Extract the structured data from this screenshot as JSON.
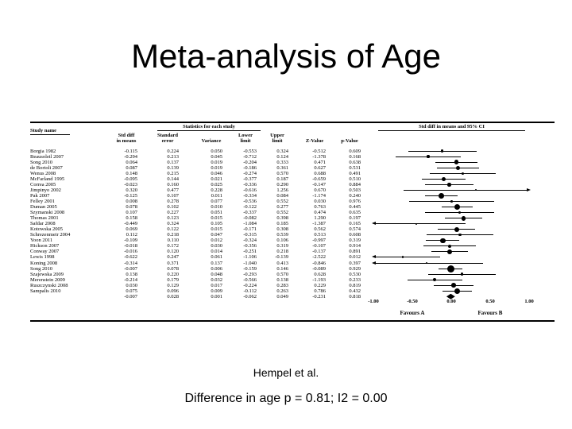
{
  "slide": {
    "title": "Meta-analysis of Age",
    "caption_authors": "Hempel et al.",
    "caption_stats": "Difference in age p = 0.81; I2 = 0.00"
  },
  "colors": {
    "text": "#000000",
    "background": "#ffffff",
    "marker": "#000000"
  },
  "chart_data": {
    "type": "forest",
    "table_headers": {
      "study": "Study name",
      "stats_group": "Statistics for each study",
      "plot": "Std diff in means and 95% CI",
      "cols": [
        {
          "l1": "Std diff",
          "l2": "in means"
        },
        {
          "l1": "Standard",
          "l2": "error"
        },
        {
          "l1": "",
          "l2": "Variance"
        },
        {
          "l1": "Lower",
          "l2": "limit"
        },
        {
          "l1": "Upper",
          "l2": "limit"
        },
        {
          "l1": "",
          "l2": "Z-Value"
        },
        {
          "l1": "",
          "l2": "p-Value"
        }
      ]
    },
    "axis": {
      "xlim": [
        -1,
        1
      ],
      "ticks": [
        -1.0,
        -0.5,
        0.0,
        0.5,
        1.0
      ],
      "tick_labels": [
        "-1.00",
        "-0.50",
        "0.00",
        "0.50",
        "1.00"
      ],
      "favours_left": "Favours A",
      "favours_right": "Favours B"
    },
    "studies": [
      {
        "name": "Borgia 1982",
        "std_diff": -0.115,
        "std_err": 0.224,
        "variance": 0.05,
        "lower": -0.553,
        "upper": 0.324,
        "z": -0.512,
        "p": 0.609
      },
      {
        "name": "Beausoleil 2007",
        "std_diff": -0.294,
        "std_err": 0.213,
        "variance": 0.045,
        "lower": -0.712,
        "upper": 0.124,
        "z": -1.378,
        "p": 0.168
      },
      {
        "name": "Song 2010",
        "std_diff": 0.064,
        "std_err": 0.137,
        "variance": 0.019,
        "lower": -0.204,
        "upper": 0.333,
        "z": 0.471,
        "p": 0.638
      },
      {
        "name": "de Bortoli 2007",
        "std_diff": 0.087,
        "std_err": 0.139,
        "variance": 0.019,
        "lower": -0.186,
        "upper": 0.361,
        "z": 0.627,
        "p": 0.531
      },
      {
        "name": "Wenus 2008",
        "std_diff": 0.148,
        "std_err": 0.215,
        "variance": 0.046,
        "lower": -0.274,
        "upper": 0.57,
        "z": 0.688,
        "p": 0.491
      },
      {
        "name": "McFarland 1995",
        "std_diff": -0.095,
        "std_err": 0.144,
        "variance": 0.021,
        "lower": -0.377,
        "upper": 0.187,
        "z": -0.659,
        "p": 0.51
      },
      {
        "name": "Correa 2005",
        "std_diff": -0.023,
        "std_err": 0.16,
        "variance": 0.025,
        "lower": -0.336,
        "upper": 0.29,
        "z": -0.147,
        "p": 0.884
      },
      {
        "name": "Jimpinyo 2002",
        "std_diff": 0.32,
        "std_err": 0.477,
        "variance": 0.228,
        "lower": -0.616,
        "upper": 1.256,
        "z": 0.67,
        "p": 0.503
      },
      {
        "name": "Pak 2007",
        "std_diff": -0.125,
        "std_err": 0.107,
        "variance": 0.011,
        "lower": -0.334,
        "upper": 0.084,
        "z": -1.174,
        "p": 0.24
      },
      {
        "name": "Felley 2001",
        "std_diff": 0.008,
        "std_err": 0.278,
        "variance": 0.077,
        "lower": -0.536,
        "upper": 0.552,
        "z": 0.03,
        "p": 0.976
      },
      {
        "name": "Duman 2005",
        "std_diff": 0.078,
        "std_err": 0.102,
        "variance": 0.01,
        "lower": -0.122,
        "upper": 0.277,
        "z": 0.763,
        "p": 0.445
      },
      {
        "name": "Szymanski 2008",
        "std_diff": 0.107,
        "std_err": 0.227,
        "variance": 0.051,
        "lower": -0.337,
        "upper": 0.552,
        "z": 0.474,
        "p": 0.635
      },
      {
        "name": "Thomas 2001",
        "std_diff": 0.158,
        "std_err": 0.123,
        "variance": 0.015,
        "lower": -0.082,
        "upper": 0.398,
        "z": 1.29,
        "p": 0.197
      },
      {
        "name": "Safdar 2008",
        "std_diff": -0.449,
        "std_err": 0.324,
        "variance": 0.105,
        "lower": -1.084,
        "upper": 0.185,
        "z": -1.387,
        "p": 0.165
      },
      {
        "name": "Kotowska 2005",
        "std_diff": 0.069,
        "std_err": 0.122,
        "variance": 0.015,
        "lower": -0.171,
        "upper": 0.308,
        "z": 0.562,
        "p": 0.574
      },
      {
        "name": "Schrezenmeir 2004",
        "std_diff": 0.112,
        "std_err": 0.218,
        "variance": 0.047,
        "lower": -0.315,
        "upper": 0.539,
        "z": 0.513,
        "p": 0.608
      },
      {
        "name": "Yoon 2011",
        "std_diff": -0.109,
        "std_err": 0.11,
        "variance": 0.012,
        "lower": -0.324,
        "upper": 0.106,
        "z": -0.997,
        "p": 0.319
      },
      {
        "name": "Hickson 2007",
        "std_diff": -0.018,
        "std_err": 0.172,
        "variance": 0.03,
        "lower": -0.356,
        "upper": 0.319,
        "z": -0.107,
        "p": 0.914
      },
      {
        "name": "Conway 2007",
        "std_diff": -0.016,
        "std_err": 0.12,
        "variance": 0.014,
        "lower": -0.251,
        "upper": 0.218,
        "z": -0.137,
        "p": 0.891
      },
      {
        "name": "Lewis 1998",
        "std_diff": -0.622,
        "std_err": 0.247,
        "variance": 0.061,
        "lower": -1.106,
        "upper": -0.139,
        "z": -2.522,
        "p": 0.012
      },
      {
        "name": "Koning 2008",
        "std_diff": -0.314,
        "std_err": 0.371,
        "variance": 0.137,
        "lower": -1.04,
        "upper": 0.413,
        "z": -0.846,
        "p": 0.397
      },
      {
        "name": "Song  2010",
        "std_diff": -0.007,
        "std_err": 0.078,
        "variance": 0.006,
        "lower": -0.159,
        "upper": 0.146,
        "z": -0.089,
        "p": 0.929
      },
      {
        "name": "Szajewska 2009",
        "std_diff": 0.138,
        "std_err": 0.22,
        "variance": 0.048,
        "lower": -0.293,
        "upper": 0.57,
        "z": 0.628,
        "p": 0.53
      },
      {
        "name": "Merenstein 2009",
        "std_diff": -0.214,
        "std_err": 0.179,
        "variance": 0.032,
        "lower": -0.566,
        "upper": 0.138,
        "z": -1.193,
        "p": 0.233
      },
      {
        "name": "Ruszczynski 2008",
        "std_diff": 0.03,
        "std_err": 0.129,
        "variance": 0.017,
        "lower": -0.224,
        "upper": 0.283,
        "z": 0.229,
        "p": 0.819
      },
      {
        "name": "Sampalis 2010",
        "std_diff": 0.075,
        "std_err": 0.096,
        "variance": 0.009,
        "lower": -0.112,
        "upper": 0.263,
        "z": 0.786,
        "p": 0.432
      }
    ],
    "total": {
      "name": "",
      "std_diff": -0.007,
      "std_err": 0.028,
      "variance": 0.001,
      "lower": -0.062,
      "upper": 0.049,
      "z": -0.231,
      "p": 0.818
    }
  }
}
